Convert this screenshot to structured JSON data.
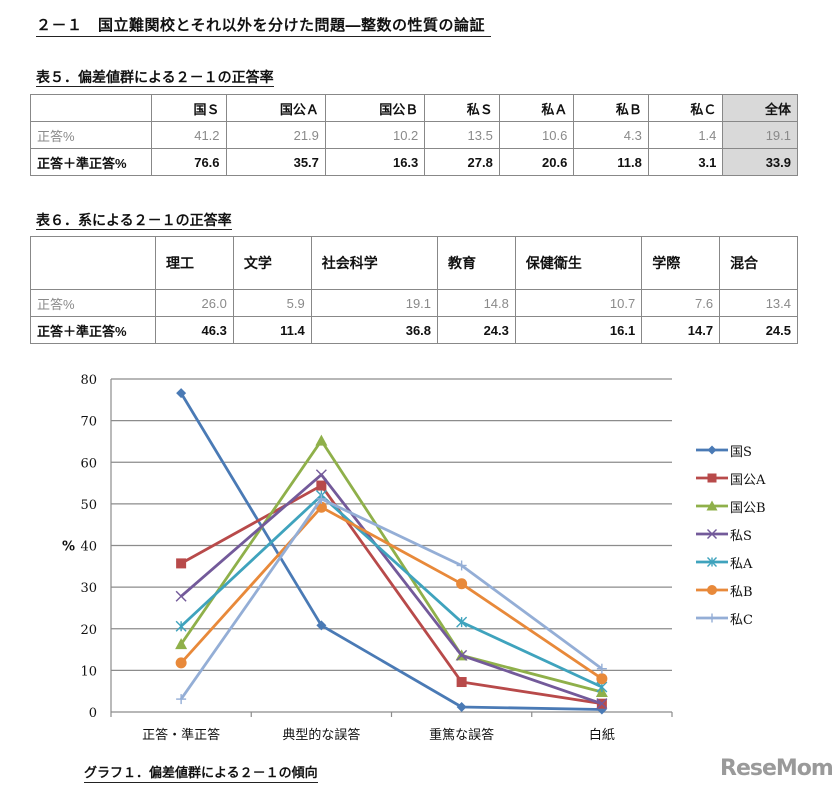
{
  "page_title": "２－１　国立難関校とそれ以外を分けた問題―整数の性質の論証",
  "table5": {
    "caption": "表５．偏差値群による２－１の正答率",
    "headers": [
      "",
      "国Ｓ",
      "国公Ａ",
      "国公Ｂ",
      "私Ｓ",
      "私Ａ",
      "私Ｂ",
      "私Ｃ",
      "全体"
    ],
    "rows": [
      {
        "label": "正答%",
        "values": [
          "41.2",
          "21.9",
          "10.2",
          "13.5",
          "10.6",
          "4.3",
          "1.4",
          "19.1"
        ]
      },
      {
        "label": "正答＋準正答%",
        "values": [
          "76.6",
          "35.7",
          "16.3",
          "27.8",
          "20.6",
          "11.8",
          "3.1",
          "33.9"
        ]
      }
    ]
  },
  "table6": {
    "caption": "表６．系による２－１の正答率",
    "headers": [
      "",
      "理工",
      "文学",
      "社会科学",
      "教育",
      "保健衛生",
      "学際",
      "混合"
    ],
    "rows": [
      {
        "label": "正答%",
        "values": [
          "26.0",
          "5.9",
          "19.1",
          "14.8",
          "10.7",
          "7.6",
          "13.4"
        ]
      },
      {
        "label": "正答＋準正答%",
        "values": [
          "46.3",
          "11.4",
          "36.8",
          "24.3",
          "16.1",
          "14.7",
          "24.5"
        ]
      }
    ]
  },
  "chart_data": {
    "type": "line",
    "title": "グラフ１．偏差値群による２－１の傾向",
    "xlabel": "",
    "ylabel": "%",
    "ylim": [
      0,
      80
    ],
    "yticks": [
      0,
      10,
      20,
      30,
      40,
      50,
      60,
      70,
      80
    ],
    "grid": true,
    "legend_position": "right",
    "categories": [
      "正答・準正答",
      "典型的な誤答",
      "重篤な誤答",
      "白紙"
    ],
    "series": [
      {
        "name": "国S",
        "color": "#4a7ab5",
        "marker": "diamond",
        "values": [
          76.6,
          20.8,
          1.2,
          0.6
        ]
      },
      {
        "name": "国公A",
        "color": "#b84a4a",
        "marker": "square",
        "values": [
          35.7,
          54.4,
          7.2,
          2.0
        ]
      },
      {
        "name": "国公B",
        "color": "#8fb04a",
        "marker": "triangle",
        "values": [
          16.3,
          65.2,
          13.6,
          4.8
        ]
      },
      {
        "name": "私S",
        "color": "#735a9a",
        "marker": "x",
        "values": [
          27.8,
          57.0,
          13.6,
          2.0
        ]
      },
      {
        "name": "私A",
        "color": "#3fa3bd",
        "marker": "star",
        "values": [
          20.6,
          52.0,
          21.6,
          6.0
        ]
      },
      {
        "name": "私B",
        "color": "#e8893a",
        "marker": "circle",
        "values": [
          11.8,
          49.2,
          30.8,
          8.0
        ]
      },
      {
        "name": "私C",
        "color": "#94aed6",
        "marker": "plus",
        "values": [
          3.1,
          51.2,
          35.2,
          10.4
        ]
      }
    ]
  },
  "figure_caption": "グラフ１．偏差値群による２－１の傾向",
  "watermark": "ReseMom"
}
